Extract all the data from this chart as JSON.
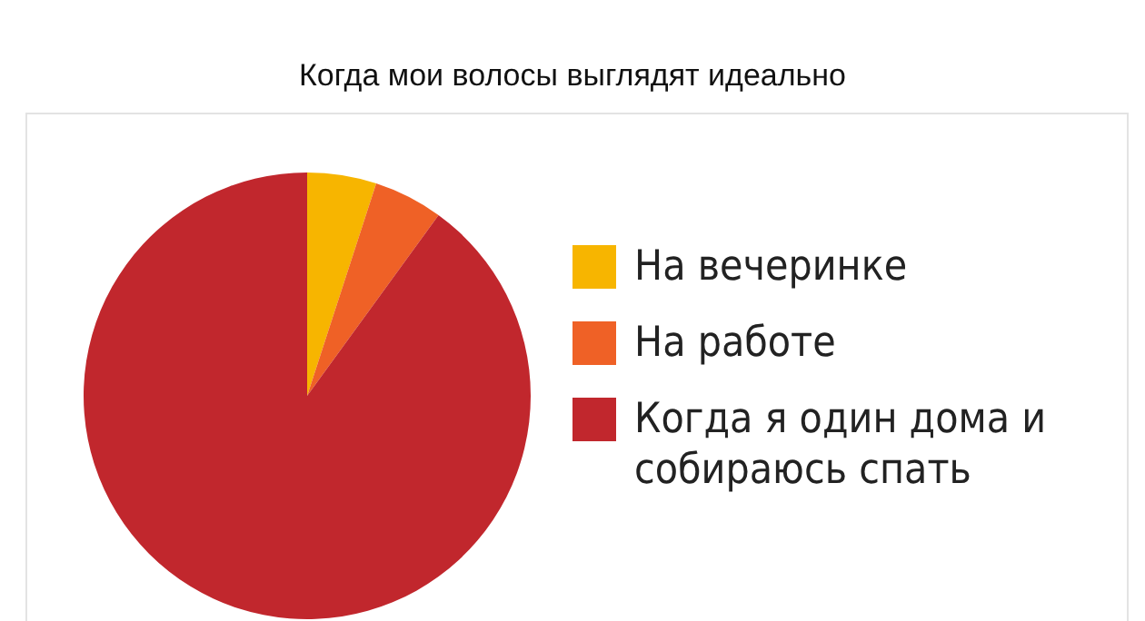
{
  "chart_data": {
    "type": "pie",
    "title": "Когда мои волосы выглядят идеально",
    "categories": [
      "На вечеринке",
      "На работе",
      "Когда я один дома и собираюсь спать"
    ],
    "values": [
      5,
      5,
      90
    ],
    "colors": [
      "#f7b500",
      "#ef6126",
      "#c1272d"
    ],
    "legend": "right"
  }
}
